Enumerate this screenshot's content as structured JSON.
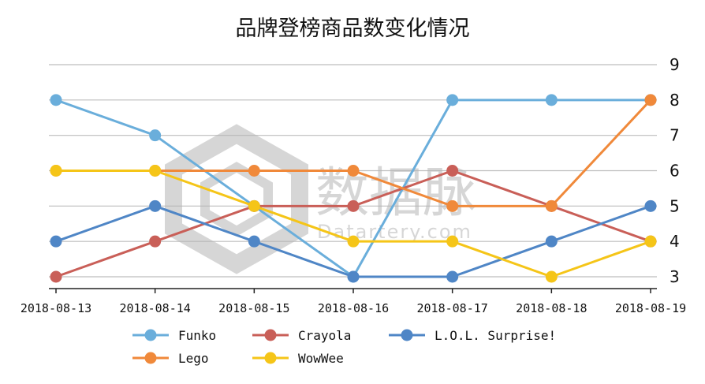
{
  "chart_data": {
    "type": "line",
    "title": "品牌登榜商品数变化情况",
    "categories": [
      "2018-08-13",
      "2018-08-14",
      "2018-08-15",
      "2018-08-16",
      "2018-08-17",
      "2018-08-18",
      "2018-08-19"
    ],
    "ylim": [
      3,
      9
    ],
    "yticks": [
      3,
      4,
      5,
      6,
      7,
      8,
      9
    ],
    "grid": true,
    "legend_position": "bottom",
    "series": [
      {
        "name": "Funko",
        "color": "#6aaedb",
        "values": [
          8,
          7,
          5,
          3,
          8,
          8,
          8
        ]
      },
      {
        "name": "Crayola",
        "color": "#c95f58",
        "values": [
          3,
          4,
          5,
          5,
          6,
          5,
          4
        ]
      },
      {
        "name": "L.O.L. Surprise!",
        "color": "#4f86c6",
        "values": [
          4,
          5,
          4,
          3,
          3,
          4,
          5
        ]
      },
      {
        "name": "Lego",
        "color": "#f0893a",
        "values": [
          6,
          6,
          6,
          6,
          5,
          5,
          8
        ]
      },
      {
        "name": "WowWee",
        "color": "#f5c518",
        "values": [
          6,
          6,
          5,
          4,
          4,
          3,
          4
        ]
      }
    ]
  },
  "watermark": {
    "main": "数据脉",
    "sub": "Datartery.com",
    "color": "#bdbdbd"
  }
}
